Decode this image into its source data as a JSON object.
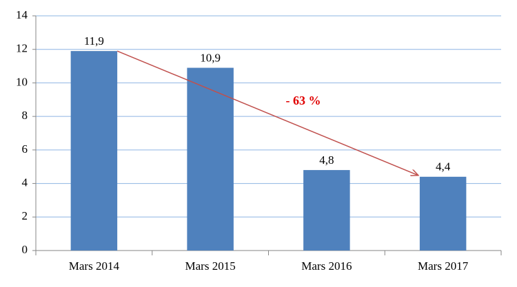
{
  "chart_data": {
    "type": "bar",
    "categories": [
      "Mars 2014",
      "Mars 2015",
      "Mars 2016",
      "Mars 2017"
    ],
    "values": [
      11.9,
      10.9,
      4.8,
      4.4
    ],
    "value_labels": [
      "11,9",
      "10,9",
      "4,8",
      "4,4"
    ],
    "color": "#4f81bd",
    "ylim": [
      0,
      14
    ],
    "yticks": [
      0,
      2,
      4,
      6,
      8,
      10,
      12,
      14
    ],
    "grid": true,
    "annotation": "- 63 %"
  }
}
